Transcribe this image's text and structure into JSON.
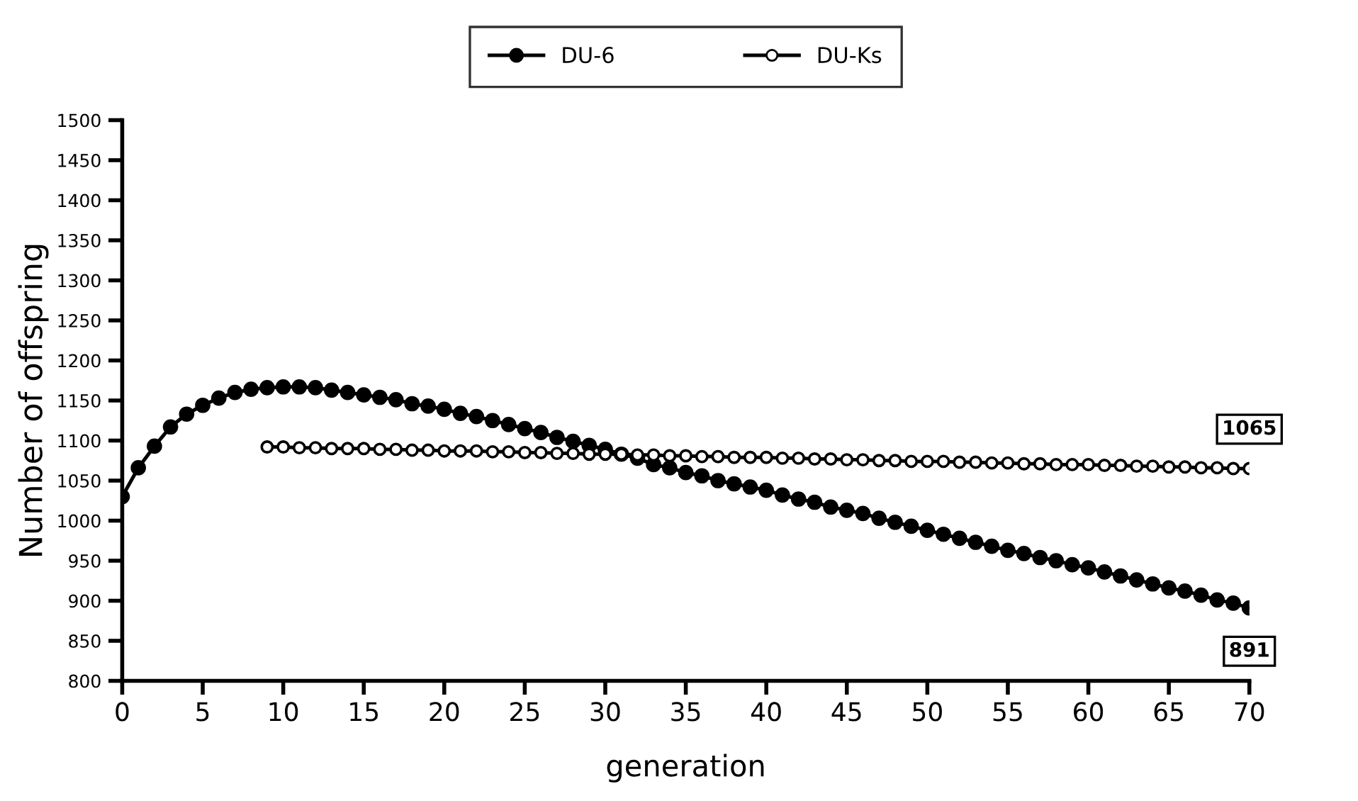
{
  "chart_data": {
    "type": "line",
    "xlabel": "generation",
    "ylabel": "Number of offspring",
    "xlim": [
      0,
      70
    ],
    "xticks": [
      0,
      5,
      10,
      15,
      20,
      25,
      30,
      35,
      40,
      45,
      50,
      55,
      60,
      65,
      70
    ],
    "ylim": [
      800,
      1500
    ],
    "yticks": [
      800,
      850,
      900,
      950,
      1000,
      1050,
      1100,
      1150,
      1200,
      1250,
      1300,
      1350,
      1400,
      1450,
      1500
    ],
    "grid": false,
    "legend": "top",
    "line_style": "solid",
    "series": [
      {
        "name": "DU-6",
        "color": "#000000",
        "marker": "circle",
        "x": [
          0,
          1,
          2,
          3,
          4,
          5,
          6,
          7,
          8,
          9,
          10,
          11,
          12,
          13,
          14,
          15,
          16,
          17,
          18,
          19,
          20,
          21,
          22,
          23,
          24,
          25,
          26,
          27,
          28,
          29,
          30,
          31,
          32,
          33,
          34,
          35,
          36,
          37,
          38,
          39,
          40,
          41,
          42,
          43,
          44,
          45,
          46,
          47,
          48,
          49,
          50,
          51,
          52,
          53,
          54,
          55,
          56,
          57,
          58,
          59,
          60,
          61,
          62,
          63,
          64,
          65,
          66,
          67,
          68,
          69,
          70
        ],
        "values": [
          1030,
          1066,
          1093,
          1117,
          1133,
          1144,
          1153,
          1160,
          1164,
          1166,
          1167,
          1167,
          1166,
          1163,
          1160,
          1157,
          1154,
          1151,
          1146,
          1143,
          1139,
          1134,
          1130,
          1125,
          1120,
          1115,
          1110,
          1104,
          1099,
          1094,
          1089,
          1083,
          1078,
          1070,
          1066,
          1060,
          1056,
          1050,
          1046,
          1042,
          1038,
          1032,
          1027,
          1023,
          1017,
          1013,
          1009,
          1003,
          998,
          993,
          988,
          983,
          978,
          973,
          968,
          963,
          959,
          954,
          950,
          945,
          941,
          936,
          931,
          926,
          921,
          916,
          912,
          907,
          901,
          897,
          891
        ],
        "value_labels": [
          null,
          null,
          null,
          null,
          null,
          null,
          null,
          null,
          null,
          null,
          null,
          null,
          null,
          null,
          null,
          null,
          null,
          null,
          null,
          null,
          null,
          null,
          null,
          null,
          null,
          null,
          null,
          null,
          null,
          null,
          null,
          null,
          null,
          null,
          null,
          null,
          null,
          null,
          null,
          null,
          null,
          null,
          null,
          null,
          null,
          null,
          null,
          null,
          null,
          null,
          null,
          null,
          null,
          null,
          null,
          null,
          null,
          null,
          null,
          null,
          null,
          null,
          null,
          null,
          null,
          null,
          null,
          null,
          null,
          null,
          "891"
        ]
      },
      {
        "name": "DU-Ks",
        "color": "#000000",
        "marker": "open circle",
        "x": [
          9,
          10,
          11,
          12,
          13,
          14,
          15,
          16,
          17,
          18,
          19,
          20,
          21,
          22,
          23,
          24,
          25,
          26,
          27,
          28,
          29,
          30,
          31,
          32,
          33,
          34,
          35,
          36,
          37,
          38,
          39,
          40,
          41,
          42,
          43,
          44,
          45,
          46,
          47,
          48,
          49,
          50,
          51,
          52,
          53,
          54,
          55,
          56,
          57,
          58,
          59,
          60,
          61,
          62,
          63,
          64,
          65,
          66,
          67,
          68,
          69,
          70
        ],
        "values": [
          1092,
          1092,
          1091,
          1091,
          1090,
          1090,
          1090,
          1089,
          1089,
          1088,
          1088,
          1087,
          1087,
          1087,
          1086,
          1086,
          1085,
          1085,
          1084,
          1084,
          1083,
          1083,
          1083,
          1082,
          1082,
          1081,
          1081,
          1080,
          1080,
          1079,
          1079,
          1079,
          1078,
          1078,
          1077,
          1077,
          1076,
          1076,
          1075,
          1075,
          1074,
          1074,
          1074,
          1073,
          1073,
          1072,
          1072,
          1071,
          1071,
          1070,
          1070,
          1070,
          1069,
          1069,
          1068,
          1068,
          1067,
          1067,
          1066,
          1066,
          1065,
          1065
        ],
        "value_labels": [
          null,
          null,
          null,
          null,
          null,
          null,
          null,
          null,
          null,
          null,
          null,
          null,
          null,
          null,
          null,
          null,
          null,
          null,
          null,
          null,
          null,
          null,
          null,
          null,
          null,
          null,
          null,
          null,
          null,
          null,
          null,
          null,
          null,
          null,
          null,
          null,
          null,
          null,
          null,
          null,
          null,
          null,
          null,
          null,
          null,
          null,
          null,
          null,
          null,
          null,
          null,
          null,
          null,
          null,
          null,
          null,
          null,
          null,
          null,
          null,
          null,
          "1065"
        ]
      }
    ]
  }
}
